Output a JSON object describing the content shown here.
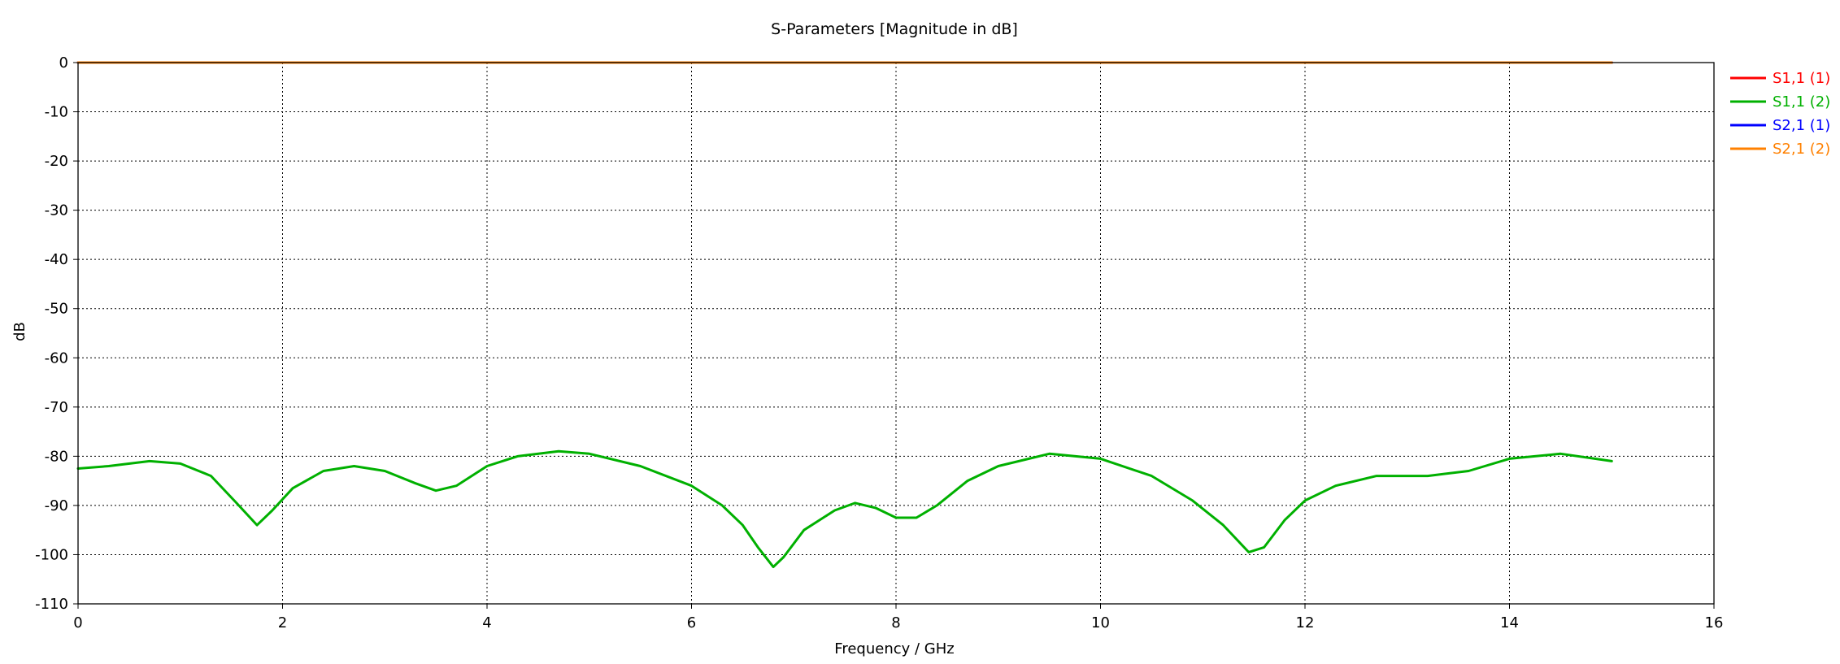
{
  "chart_data": {
    "type": "line",
    "title": "S-Parameters [Magnitude in dB]",
    "xlabel": "Frequency / GHz",
    "ylabel": "dB",
    "xlim": [
      0,
      16
    ],
    "ylim": [
      -110,
      0
    ],
    "x_ticks": [
      0,
      2,
      4,
      6,
      8,
      10,
      12,
      14,
      16
    ],
    "y_ticks": [
      0,
      -10,
      -20,
      -30,
      -40,
      -50,
      -60,
      -70,
      -80,
      -90,
      -100,
      -110
    ],
    "grid": true,
    "legend_position": "right",
    "series": [
      {
        "name": "S1,1 (1)",
        "color": "#ff0000",
        "x": [
          0,
          15
        ],
        "y": [
          0,
          0
        ]
      },
      {
        "name": "S1,1 (2)",
        "color": "#00b000",
        "x": [
          0,
          0.3,
          0.7,
          1.0,
          1.3,
          1.55,
          1.75,
          1.9,
          2.1,
          2.4,
          2.7,
          3.0,
          3.3,
          3.5,
          3.7,
          4.0,
          4.3,
          4.7,
          5.0,
          5.5,
          6.0,
          6.3,
          6.5,
          6.65,
          6.8,
          6.9,
          7.1,
          7.4,
          7.6,
          7.8,
          8.0,
          8.2,
          8.4,
          8.7,
          9.0,
          9.5,
          10.0,
          10.5,
          10.9,
          11.2,
          11.45,
          11.6,
          11.8,
          12.0,
          12.3,
          12.7,
          13.2,
          13.6,
          14.0,
          14.5,
          15.0
        ],
        "y": [
          -82.5,
          -82,
          -81,
          -81.5,
          -84,
          -89.5,
          -94,
          -91,
          -86.5,
          -83,
          -82,
          -83,
          -85.5,
          -87,
          -86,
          -82,
          -80,
          -79,
          -79.5,
          -82,
          -86,
          -90,
          -94,
          -98.5,
          -102.5,
          -100.5,
          -95,
          -91,
          -89.5,
          -90.5,
          -92.5,
          -92.5,
          -90,
          -85,
          -82,
          -79.5,
          -80.5,
          -84,
          -89,
          -94,
          -99.5,
          -98.5,
          -93,
          -89,
          -86,
          -84,
          -84,
          -83,
          -80.5,
          -79.5,
          -81
        ]
      },
      {
        "name": "S2,1 (1)",
        "color": "#0000ff",
        "x": [
          0,
          15
        ],
        "y": [
          0,
          0
        ]
      },
      {
        "name": "S2,1 (2)",
        "color": "#ff8000",
        "x": [
          0,
          15
        ],
        "y": [
          0,
          0
        ]
      }
    ]
  }
}
